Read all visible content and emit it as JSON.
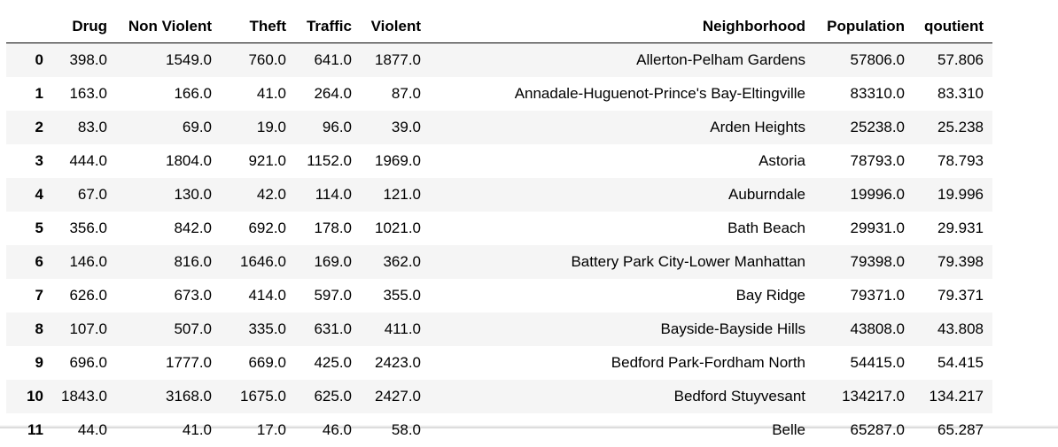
{
  "table": {
    "index_header": "",
    "columns": [
      "Drug",
      "Non Violent",
      "Theft",
      "Traffic",
      "Violent",
      "Neighborhood",
      "Population",
      "qoutient"
    ],
    "rows": [
      {
        "index": "0",
        "cells": [
          "398.0",
          "1549.0",
          "760.0",
          "641.0",
          "1877.0",
          "Allerton-Pelham Gardens",
          "57806.0",
          "57.806"
        ]
      },
      {
        "index": "1",
        "cells": [
          "163.0",
          "166.0",
          "41.0",
          "264.0",
          "87.0",
          "Annadale-Huguenot-Prince's Bay-Eltingville",
          "83310.0",
          "83.310"
        ]
      },
      {
        "index": "2",
        "cells": [
          "83.0",
          "69.0",
          "19.0",
          "96.0",
          "39.0",
          "Arden Heights",
          "25238.0",
          "25.238"
        ]
      },
      {
        "index": "3",
        "cells": [
          "444.0",
          "1804.0",
          "921.0",
          "1152.0",
          "1969.0",
          "Astoria",
          "78793.0",
          "78.793"
        ]
      },
      {
        "index": "4",
        "cells": [
          "67.0",
          "130.0",
          "42.0",
          "114.0",
          "121.0",
          "Auburndale",
          "19996.0",
          "19.996"
        ]
      },
      {
        "index": "5",
        "cells": [
          "356.0",
          "842.0",
          "692.0",
          "178.0",
          "1021.0",
          "Bath Beach",
          "29931.0",
          "29.931"
        ]
      },
      {
        "index": "6",
        "cells": [
          "146.0",
          "816.0",
          "1646.0",
          "169.0",
          "362.0",
          "Battery Park City-Lower Manhattan",
          "79398.0",
          "79.398"
        ]
      },
      {
        "index": "7",
        "cells": [
          "626.0",
          "673.0",
          "414.0",
          "597.0",
          "355.0",
          "Bay Ridge",
          "79371.0",
          "79.371"
        ]
      },
      {
        "index": "8",
        "cells": [
          "107.0",
          "507.0",
          "335.0",
          "631.0",
          "411.0",
          "Bayside-Bayside Hills",
          "43808.0",
          "43.808"
        ]
      },
      {
        "index": "9",
        "cells": [
          "696.0",
          "1777.0",
          "669.0",
          "425.0",
          "2423.0",
          "Bedford Park-Fordham North",
          "54415.0",
          "54.415"
        ]
      },
      {
        "index": "10",
        "cells": [
          "1843.0",
          "3168.0",
          "1675.0",
          "625.0",
          "2427.0",
          "Bedford Stuyvesant",
          "134217.0",
          "134.217"
        ]
      },
      {
        "index": "11",
        "cells": [
          "44.0",
          "41.0",
          "17.0",
          "46.0",
          "58.0",
          "Belle",
          "65287.0",
          "65.287"
        ]
      }
    ]
  }
}
